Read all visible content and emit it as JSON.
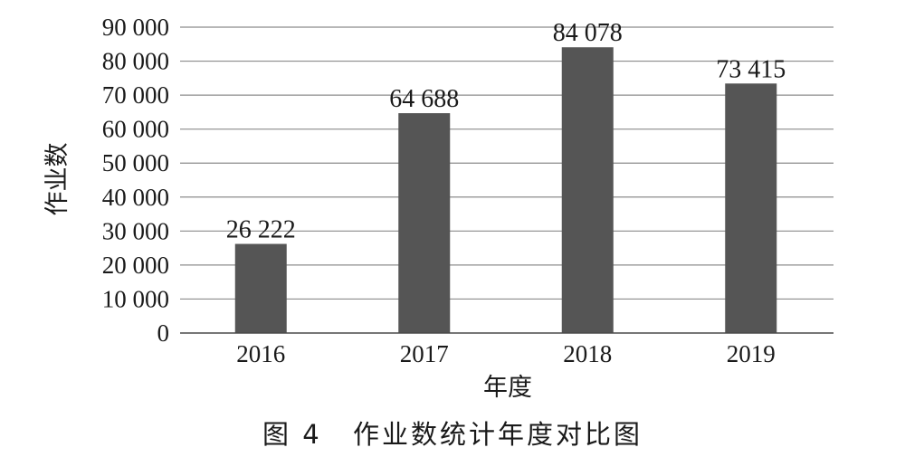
{
  "chart_data": {
    "type": "bar",
    "categories": [
      "2016",
      "2017",
      "2018",
      "2019"
    ],
    "values": [
      26222,
      64688,
      84078,
      73415
    ],
    "data_labels": [
      "26 222",
      "64 688",
      "84 078",
      "73 415"
    ],
    "title": "",
    "xlabel": "年度",
    "ylabel": "作业数",
    "ylim": [
      0,
      90000
    ],
    "yticks": [
      0,
      10000,
      20000,
      30000,
      40000,
      50000,
      60000,
      70000,
      80000,
      90000
    ],
    "ytick_labels": [
      "0",
      "10 000",
      "20 000",
      "30 000",
      "40 000",
      "50 000",
      "60 000",
      "70 000",
      "80 000",
      "90 000"
    ],
    "grid": true,
    "legend": "none",
    "bar_color": "#555555"
  },
  "caption": {
    "figure_number": "图 4",
    "text": "作业数统计年度对比图"
  }
}
